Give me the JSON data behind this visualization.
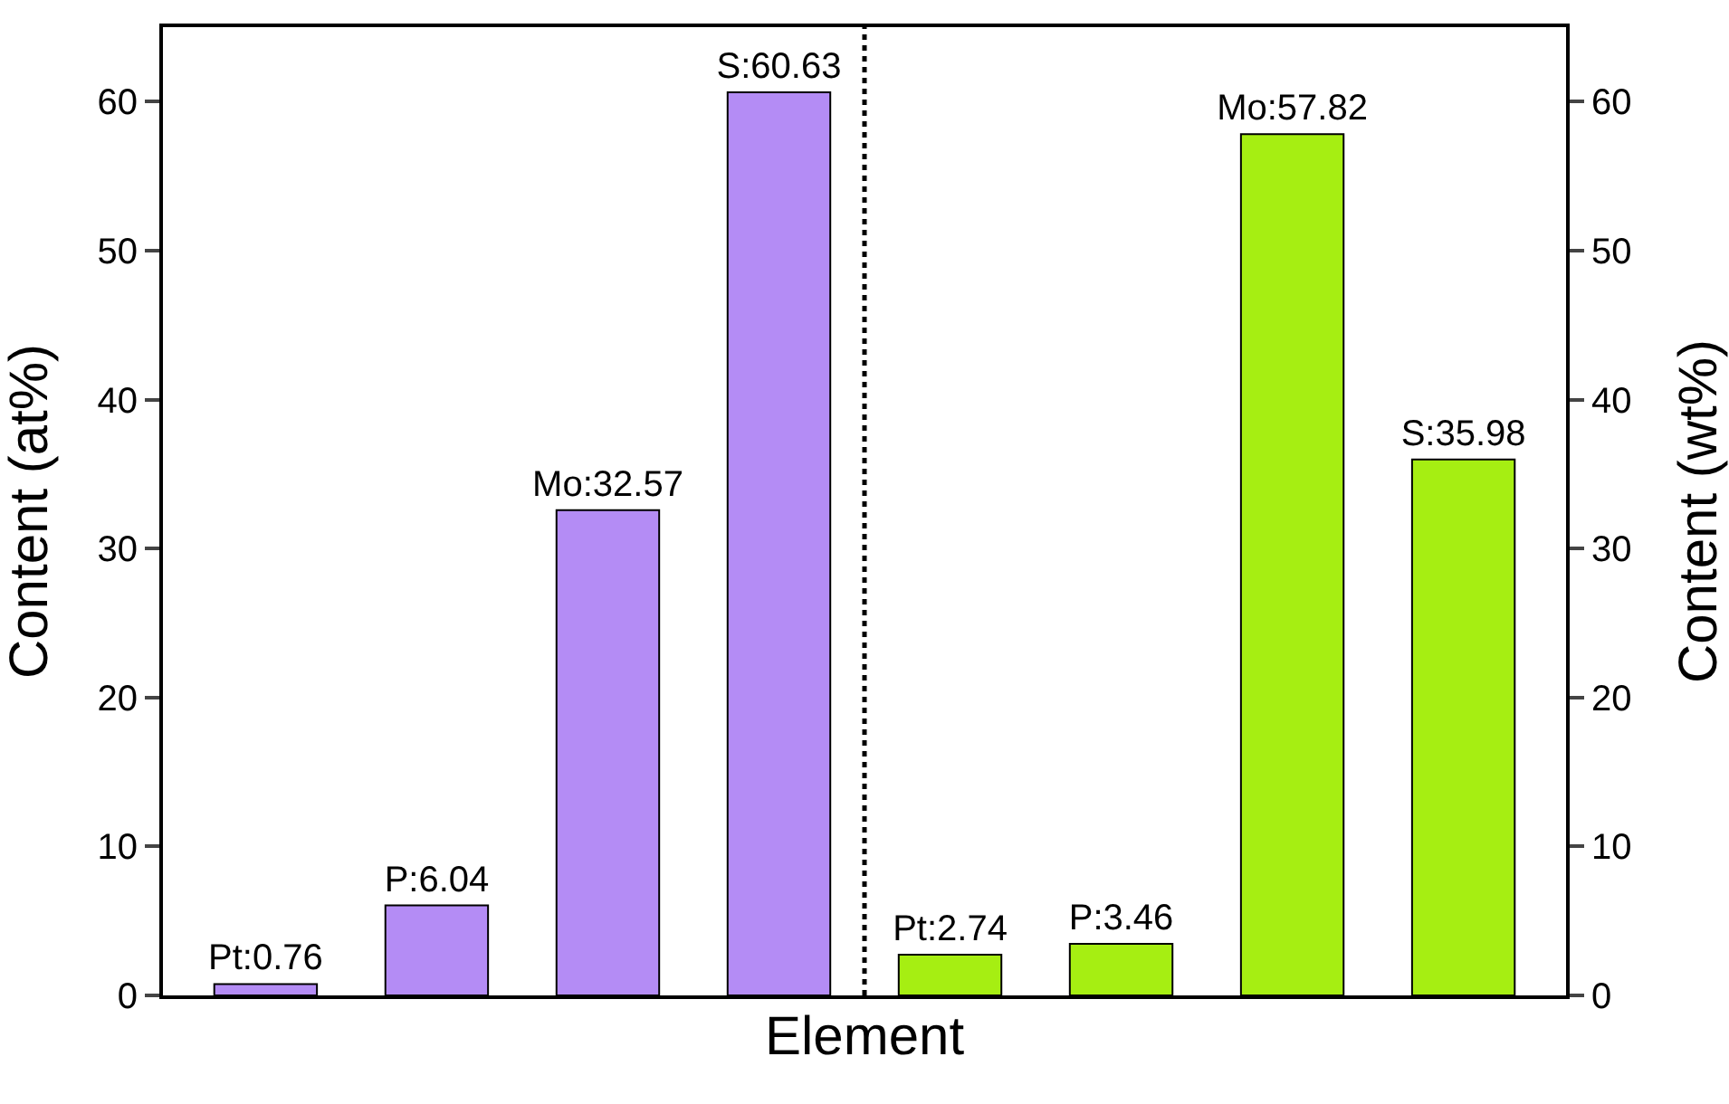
{
  "chart_data": {
    "type": "bar",
    "xlabel": "Element",
    "ylabel": "Content (at%)",
    "y2label": "Content (wt%)",
    "categories": [
      null,
      null,
      null,
      null,
      null,
      null,
      null,
      null
    ],
    "series": [
      {
        "color": "#b48cf5",
        "values": [
          0.76,
          6.04,
          32.57,
          60.63,
          null,
          null,
          null,
          null
        ],
        "value_labels": [
          "Pt:0.76",
          "P:6.04",
          "Mo:32.57",
          "S:60.63",
          null,
          null,
          null,
          null
        ]
      },
      {
        "color": "#a6ee12",
        "axis": "y2",
        "values": [
          null,
          null,
          null,
          null,
          2.74,
          3.46,
          57.82,
          35.98
        ],
        "value_labels": [
          null,
          null,
          null,
          null,
          "Pt:2.74",
          "P:3.46",
          "Mo:57.82",
          "S:35.98"
        ]
      }
    ],
    "ylim": [
      0,
      65
    ],
    "yticks": [
      0,
      10,
      20,
      30,
      40,
      50,
      60
    ],
    "y2lim": [
      0,
      65
    ],
    "y2ticks": [
      0,
      10,
      20,
      30,
      40,
      50,
      60
    ],
    "grid": false
  }
}
